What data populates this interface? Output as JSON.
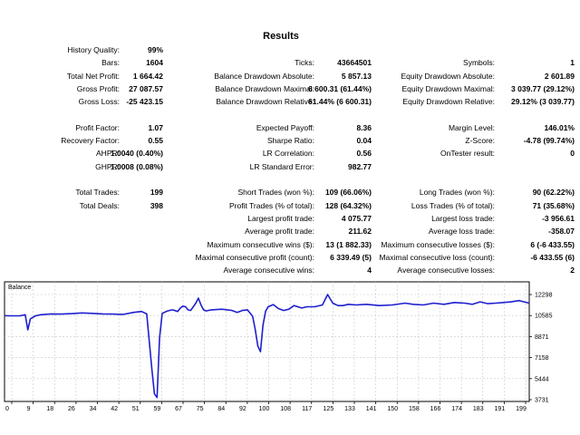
{
  "title": "Results",
  "rows": [
    [
      [
        "History Quality:",
        "99%"
      ],
      null,
      null
    ],
    [
      [
        "Bars:",
        "1604"
      ],
      [
        "Ticks:",
        "43664501"
      ],
      [
        "Symbols:",
        "1"
      ]
    ],
    [
      [
        "Total Net Profit:",
        "1 664.42"
      ],
      [
        "Balance Drawdown Absolute:",
        "5 857.13"
      ],
      [
        "Equity Drawdown Absolute:",
        "2 601.89"
      ]
    ],
    [
      [
        "Gross Profit:",
        "27 087.57"
      ],
      [
        "Balance Drawdown Maximal:",
        "6 600.31 (61.44%)"
      ],
      [
        "Equity Drawdown Maximal:",
        "3 039.77 (29.12%)"
      ]
    ],
    [
      [
        "Gross Loss:",
        "-25 423.15"
      ],
      [
        "Balance Drawdown Relative:",
        "61.44% (6 600.31)"
      ],
      [
        "Equity Drawdown Relative:",
        "29.12% (3 039.77)"
      ]
    ],
    null,
    [
      [
        "Profit Factor:",
        "1.07"
      ],
      [
        "Expected Payoff:",
        "8.36"
      ],
      [
        "Margin Level:",
        "146.01%"
      ]
    ],
    [
      [
        "Recovery Factor:",
        "0.55"
      ],
      [
        "Sharpe Ratio:",
        "0.04"
      ],
      [
        "Z-Score:",
        "-4.78 (99.74%)"
      ]
    ],
    [
      [
        "AHPR:",
        "1.0040 (0.40%)"
      ],
      [
        "LR Correlation:",
        "0.56"
      ],
      [
        "OnTester result:",
        "0"
      ]
    ],
    [
      [
        "GHPR:",
        "1.0008 (0.08%)"
      ],
      [
        "LR Standard Error:",
        "982.77"
      ],
      null
    ],
    null,
    [
      [
        "Total Trades:",
        "199"
      ],
      [
        "Short Trades (won %):",
        "109 (66.06%)"
      ],
      [
        "Long Trades (won %):",
        "90 (62.22%)"
      ]
    ],
    [
      [
        "Total Deals:",
        "398"
      ],
      [
        "Profit Trades (% of total):",
        "128 (64.32%)"
      ],
      [
        "Loss Trades (% of total):",
        "71 (35.68%)"
      ]
    ],
    [
      null,
      [
        "Largest profit trade:",
        "4 075.77"
      ],
      [
        "Largest loss trade:",
        "-3 956.61"
      ]
    ],
    [
      null,
      [
        "Average profit trade:",
        "211.62"
      ],
      [
        "Average loss trade:",
        "-358.07"
      ]
    ],
    [
      null,
      [
        "Maximum consecutive wins ($):",
        "13 (1 882.33)"
      ],
      [
        "Maximum consecutive losses ($):",
        "6 (-6 433.55)"
      ]
    ],
    [
      null,
      [
        "Maximal consecutive profit (count):",
        "6 339.49 (5)"
      ],
      [
        "Maximal consecutive loss (count):",
        "-6 433.55 (6)"
      ]
    ],
    [
      null,
      [
        "Average consecutive wins:",
        "4"
      ],
      [
        "Average consecutive losses:",
        "2"
      ]
    ]
  ],
  "chart_data": {
    "type": "line",
    "title": "Balance",
    "series": [
      {
        "name": "Balance",
        "x": [
          0,
          2,
          4,
          6,
          8,
          9,
          10,
          12,
          14,
          18,
          22,
          26,
          30,
          34,
          38,
          42,
          46,
          50,
          53,
          55,
          57,
          58,
          59,
          60,
          61,
          63,
          65,
          67,
          68,
          69,
          70,
          71,
          72,
          74,
          75,
          76,
          77,
          78,
          80,
          84,
          88,
          90,
          92,
          94,
          96,
          97,
          98,
          99,
          100,
          101,
          102,
          104,
          106,
          108,
          110,
          112,
          115,
          117,
          120,
          123,
          125,
          127,
          129,
          131,
          133,
          136,
          140,
          145,
          150,
          155,
          158,
          162,
          166,
          170,
          174,
          178,
          181,
          184,
          187,
          190,
          193,
          196,
          199,
          201,
          203
        ],
        "y": [
          10580,
          10560,
          10560,
          10560,
          10650,
          9420,
          10320,
          10560,
          10650,
          10720,
          10700,
          10740,
          10800,
          10760,
          10720,
          10700,
          10680,
          10840,
          10920,
          10720,
          6200,
          4200,
          3900,
          8800,
          10760,
          10960,
          11050,
          10920,
          11200,
          11350,
          11300,
          11050,
          11000,
          11600,
          12000,
          11450,
          11050,
          10960,
          11050,
          11100,
          11000,
          10840,
          11000,
          11050,
          10520,
          9420,
          8100,
          7640,
          9800,
          10950,
          11300,
          11480,
          11150,
          11000,
          11100,
          11400,
          11200,
          11300,
          11300,
          11450,
          12300,
          11600,
          11400,
          11400,
          11500,
          11450,
          11500,
          11400,
          11450,
          11600,
          11500,
          11450,
          11600,
          11500,
          11650,
          11600,
          11500,
          11700,
          11550,
          11600,
          11650,
          11700,
          11800,
          11700,
          11600
        ]
      }
    ],
    "y_ticks": [
      "12298",
      "10585",
      "8871",
      "7158",
      "5444",
      "3731"
    ],
    "x_ticks": [
      "0",
      "9",
      "18",
      "26",
      "34",
      "42",
      "51",
      "59",
      "67",
      "75",
      "84",
      "92",
      "100",
      "108",
      "117",
      "125",
      "133",
      "141",
      "150",
      "158",
      "166",
      "174",
      "183",
      "191",
      "199"
    ],
    "ylim": [
      3731,
      12298
    ],
    "xlim": [
      0,
      203
    ],
    "grid": true
  },
  "colors": {
    "line": "#1f1fcf",
    "grid": "#c8c8c8",
    "frame": "#000000"
  }
}
